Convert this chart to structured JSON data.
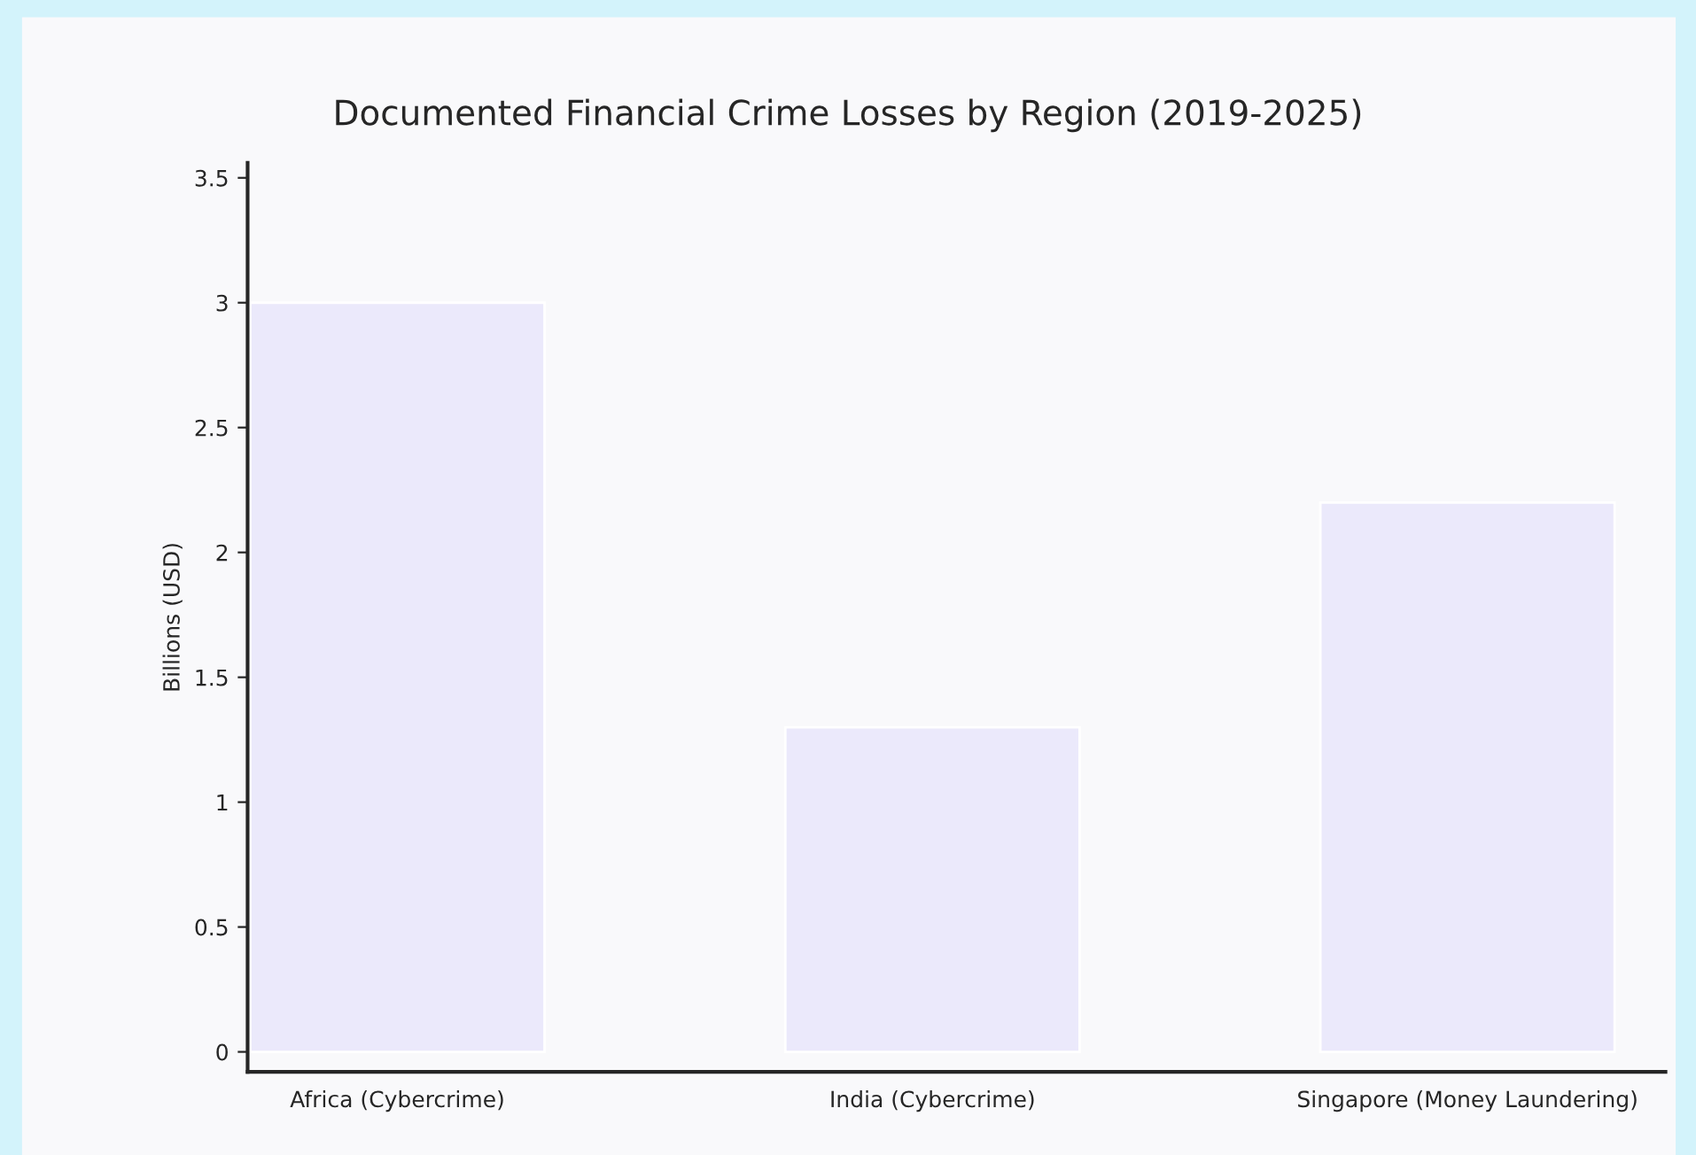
{
  "chart_data": {
    "type": "bar",
    "title": "Documented Financial Crime Losses by Region (2019-2025)",
    "ylabel": "Billions (USD)",
    "categories": [
      "Africa (Cybercrime)",
      "India (Cybercrime)",
      "Singapore (Money Laundering)"
    ],
    "values": [
      3,
      1.3,
      2.2
    ],
    "color": "#ebe9fb",
    "ylim": [
      -0.08,
      3.56
    ],
    "yticks": [
      0,
      0.5,
      1,
      1.5,
      2,
      2.5,
      3,
      3.5
    ],
    "grid": false,
    "legend": false
  }
}
